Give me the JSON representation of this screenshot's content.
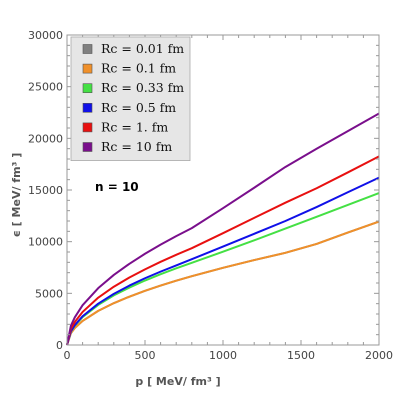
{
  "chart_data": {
    "type": "line",
    "xlabel": "p [ MeV/ fm³ ]",
    "ylabel": "ϵ [ MeV/ fm³ ]",
    "xlim": [
      0,
      2000
    ],
    "ylim": [
      0,
      30000
    ],
    "xticks": [
      0,
      500,
      1000,
      1500,
      2000
    ],
    "yticks": [
      0,
      5000,
      10000,
      15000,
      20000,
      25000,
      30000
    ],
    "xtick_labels": [
      "0",
      "500",
      "1000",
      "1500",
      "2000"
    ],
    "ytick_labels": [
      "0",
      "5000",
      "10000",
      "15000",
      "20000",
      "25000",
      "30000"
    ],
    "grid": false,
    "legend_position": "top-left",
    "annotation": "n = 10",
    "x": [
      0,
      25,
      50,
      100,
      200,
      300,
      400,
      500,
      600,
      700,
      800,
      1000,
      1200,
      1400,
      1600,
      1800,
      2000
    ],
    "series": [
      {
        "name": "Rc = 0.01 fm",
        "color": "#808080",
        "values": [
          0,
          1150,
          1640,
          2330,
          3300,
          4050,
          4680,
          5240,
          5750,
          6220,
          6660,
          7470,
          8220,
          8920,
          9780,
          10880,
          11950
        ]
      },
      {
        "name": "Rc = 0.1 fm",
        "color": "#f0902a",
        "values": [
          0,
          1150,
          1640,
          2330,
          3300,
          4050,
          4680,
          5240,
          5750,
          6220,
          6660,
          7470,
          8220,
          8920,
          9780,
          10880,
          11950
        ]
      },
      {
        "name": "Rc = 0.33 fm",
        "color": "#44e044",
        "values": [
          0,
          1300,
          1880,
          2700,
          3880,
          4800,
          5560,
          6240,
          6850,
          7420,
          7950,
          9030,
          10130,
          11270,
          12410,
          13560,
          14700
        ]
      },
      {
        "name": "Rc = 0.5 fm",
        "color": "#1010e8",
        "values": [
          0,
          1320,
          1920,
          2780,
          4000,
          4950,
          5750,
          6460,
          7100,
          7700,
          8300,
          9530,
          10760,
          12000,
          13350,
          14780,
          16200
        ]
      },
      {
        "name": "Rc = 1. fm",
        "color": "#e81010",
        "values": [
          0,
          1550,
          2230,
          3200,
          4580,
          5640,
          6530,
          7320,
          8050,
          8730,
          9370,
          10820,
          12300,
          13770,
          15170,
          16700,
          18250
        ]
      },
      {
        "name": "Rc = 10 fm",
        "color": "#7a0f8c",
        "values": [
          0,
          1870,
          2680,
          3850,
          5500,
          6780,
          7860,
          8830,
          9710,
          10540,
          11310,
          13240,
          15220,
          17230,
          18990,
          20700,
          22400
        ]
      }
    ]
  }
}
